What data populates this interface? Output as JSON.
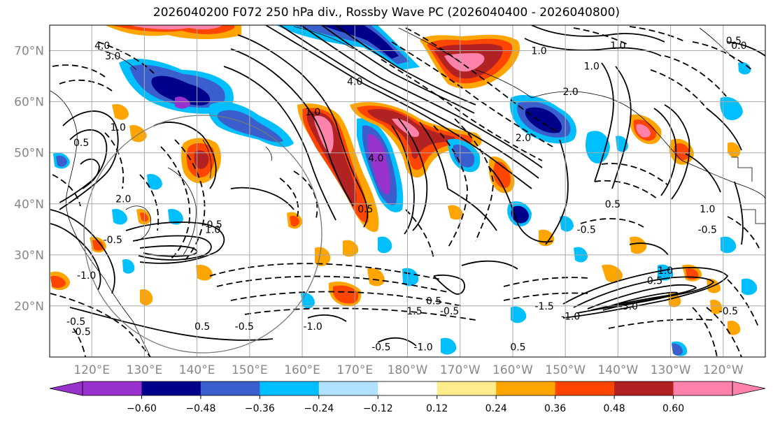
{
  "title": "2026040200 F072 250 hPa div., Rossby Wave PC (2026040400 - 2026040800)",
  "map": {
    "lat_ticks": [
      {
        "lat": 70,
        "label": "70°N"
      },
      {
        "lat": 60,
        "label": "60°N"
      },
      {
        "lat": 50,
        "label": "50°N"
      },
      {
        "lat": 40,
        "label": "40°N"
      },
      {
        "lat": 30,
        "label": "30°N"
      },
      {
        "lat": 20,
        "label": "20°N"
      }
    ],
    "lon_ticks": [
      {
        "lon": 120,
        "label": "120°E"
      },
      {
        "lon": 130,
        "label": "130°E"
      },
      {
        "lon": 140,
        "label": "140°E"
      },
      {
        "lon": 150,
        "label": "150°E"
      },
      {
        "lon": 160,
        "label": "160°E"
      },
      {
        "lon": 170,
        "label": "170°E"
      },
      {
        "lon": 180,
        "label": "180°W"
      },
      {
        "lon": 190,
        "label": "170°W"
      },
      {
        "lon": 200,
        "label": "160°W"
      },
      {
        "lon": 210,
        "label": "150°W"
      },
      {
        "lon": 220,
        "label": "140°W"
      },
      {
        "lon": 230,
        "label": "130°W"
      },
      {
        "lon": 240,
        "label": "120°W"
      }
    ],
    "extent": {
      "lon_min": 112,
      "lon_max": 248,
      "lat_min": 10,
      "lat_max": 75
    },
    "colors": {
      "grid": "#aaaaaa",
      "tick_label": "#888888",
      "coast": "#000000"
    },
    "contour_labels": [
      {
        "text": "4.0",
        "lon": 122,
        "lat": 71
      },
      {
        "text": "3.0",
        "lon": 124,
        "lat": 69
      },
      {
        "text": "4.0",
        "lon": 170,
        "lat": 64
      },
      {
        "text": "1.0",
        "lon": 162,
        "lat": 58
      },
      {
        "text": "4.0",
        "lon": 174,
        "lat": 49
      },
      {
        "text": "2.0",
        "lon": 202,
        "lat": 53
      },
      {
        "text": "1.0",
        "lon": 220,
        "lat": 71
      },
      {
        "text": "1.0",
        "lon": 215,
        "lat": 67
      },
      {
        "text": "0.5",
        "lon": 219,
        "lat": 40
      },
      {
        "text": "1.0",
        "lon": 237,
        "lat": 39
      },
      {
        "text": "-0.5",
        "lon": 237,
        "lat": 35
      },
      {
        "text": "0.5",
        "lon": 185,
        "lat": 21
      },
      {
        "text": "-0.5",
        "lon": 188,
        "lat": 19
      },
      {
        "text": "-1.0",
        "lon": 211,
        "lat": 18
      },
      {
        "text": "-3.0",
        "lon": 222,
        "lat": 20
      },
      {
        "text": "-0.5",
        "lon": 241,
        "lat": 19
      },
      {
        "text": "0.5",
        "lon": 172,
        "lat": 39
      },
      {
        "text": "0.5",
        "lon": 141,
        "lat": 16
      },
      {
        "text": "-0.5",
        "lon": 149,
        "lat": 16
      },
      {
        "text": "-0.5",
        "lon": 175,
        "lat": 12
      },
      {
        "text": "-1.0",
        "lon": 183,
        "lat": 12
      },
      {
        "text": "0.5",
        "lon": 201,
        "lat": 12
      },
      {
        "text": "-1.0",
        "lon": 162,
        "lat": 16
      },
      {
        "text": "-1.5",
        "lon": 206,
        "lat": 20
      },
      {
        "text": "1.0",
        "lon": 229,
        "lat": 27
      },
      {
        "text": "0.5",
        "lon": 227,
        "lat": 25
      },
      {
        "text": "1.0",
        "lon": 205,
        "lat": 70
      },
      {
        "text": "2.0",
        "lon": 211,
        "lat": 62
      },
      {
        "text": "0.5",
        "lon": 242,
        "lat": 72
      },
      {
        "text": "0.0",
        "lon": 243,
        "lat": 71
      },
      {
        "text": "-0.5",
        "lon": 214,
        "lat": 35
      },
      {
        "text": "-1.5",
        "lon": 181,
        "lat": 19
      },
      {
        "text": "1.0",
        "lon": 125,
        "lat": 55
      },
      {
        "text": "2.0",
        "lon": 126,
        "lat": 41
      },
      {
        "text": "0.5",
        "lon": 118,
        "lat": 52
      },
      {
        "text": "-0.5",
        "lon": 124,
        "lat": 33
      },
      {
        "text": "-1.0",
        "lon": 119,
        "lat": 26
      },
      {
        "text": "-0.5",
        "lon": 117,
        "lat": 17
      },
      {
        "text": "-0.5",
        "lon": 118,
        "lat": 15
      },
      {
        "text": "-0.5",
        "lon": 143,
        "lat": 36
      },
      {
        "text": "1.0",
        "lon": 143,
        "lat": 35
      }
    ]
  },
  "colorbar": {
    "colors": [
      "#9932CC",
      "#00008B",
      "#3A5FCD",
      "#00BFFF",
      "#B0E2FF",
      "#FFFFFF",
      "#FFEC8B",
      "#FFA500",
      "#FF4500",
      "#B22222",
      "#FF82AB"
    ],
    "ticks": [
      {
        "value": -0.6,
        "label": "−0.60"
      },
      {
        "value": -0.48,
        "label": "−0.48"
      },
      {
        "value": -0.36,
        "label": "−0.36"
      },
      {
        "value": -0.24,
        "label": "−0.24"
      },
      {
        "value": -0.12,
        "label": "−0.12"
      },
      {
        "value": 0.12,
        "label": "0.12"
      },
      {
        "value": 0.24,
        "label": "0.24"
      },
      {
        "value": 0.36,
        "label": "0.36"
      },
      {
        "value": 0.48,
        "label": "0.48"
      },
      {
        "value": 0.6,
        "label": "0.60"
      }
    ]
  }
}
